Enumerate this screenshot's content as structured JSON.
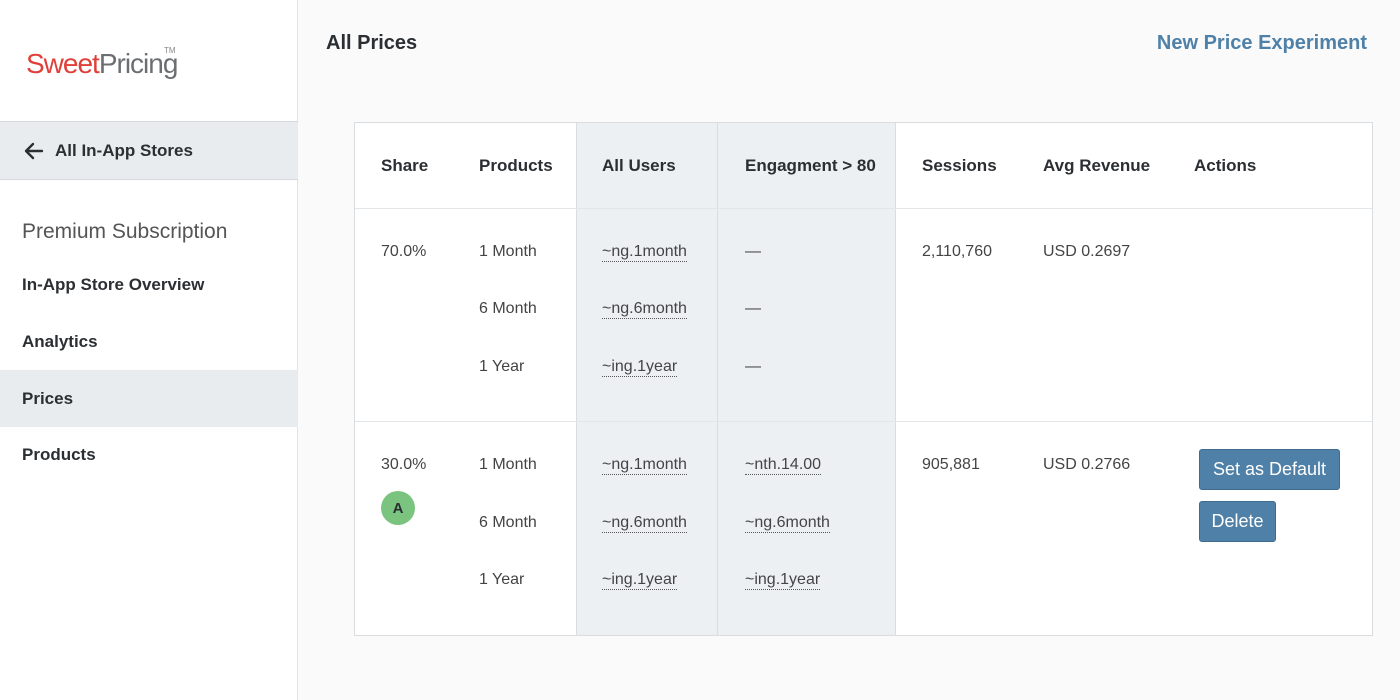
{
  "logo": {
    "sweet": "Sweet",
    "pricing": "Pricing",
    "tm": "TM"
  },
  "sidebar": {
    "back_label": "All In-App Stores",
    "section_title": "Premium Subscription",
    "items": [
      {
        "label": "In-App Store Overview"
      },
      {
        "label": "Analytics"
      },
      {
        "label": "Prices"
      },
      {
        "label": "Products"
      }
    ]
  },
  "header": {
    "title": "All Prices",
    "new_experiment": "New Price Experiment"
  },
  "table": {
    "headers": [
      "Share",
      "Products",
      "All Users",
      "Engagment > 80",
      "Sessions",
      "Avg Revenue",
      "Actions"
    ],
    "groups": [
      {
        "share": "70.0%",
        "badge": "",
        "products": [
          "1 Month",
          "6 Month",
          "1 Year"
        ],
        "all_users": [
          "~ng.1month",
          "~ng.6month",
          "~ing.1year"
        ],
        "engagement": [
          "—",
          "—",
          "—"
        ],
        "sessions": "2,110,760",
        "avg_revenue": "USD 0.2697"
      },
      {
        "share": "30.0%",
        "badge": "A",
        "products": [
          "1 Month",
          "6 Month",
          "1 Year"
        ],
        "all_users": [
          "~ng.1month",
          "~ng.6month",
          "~ing.1year"
        ],
        "engagement": [
          "~nth.14.00",
          "~ng.6month",
          "~ing.1year"
        ],
        "sessions": "905,881",
        "avg_revenue": "USD 0.2766",
        "actions": {
          "set_default": "Set as Default",
          "delete": "Delete"
        }
      }
    ]
  },
  "colors": {
    "accent": "#4f81a8",
    "brand_red": "#e0403a",
    "badge_green": "#7ac47f",
    "shade": "#edf0f3"
  }
}
